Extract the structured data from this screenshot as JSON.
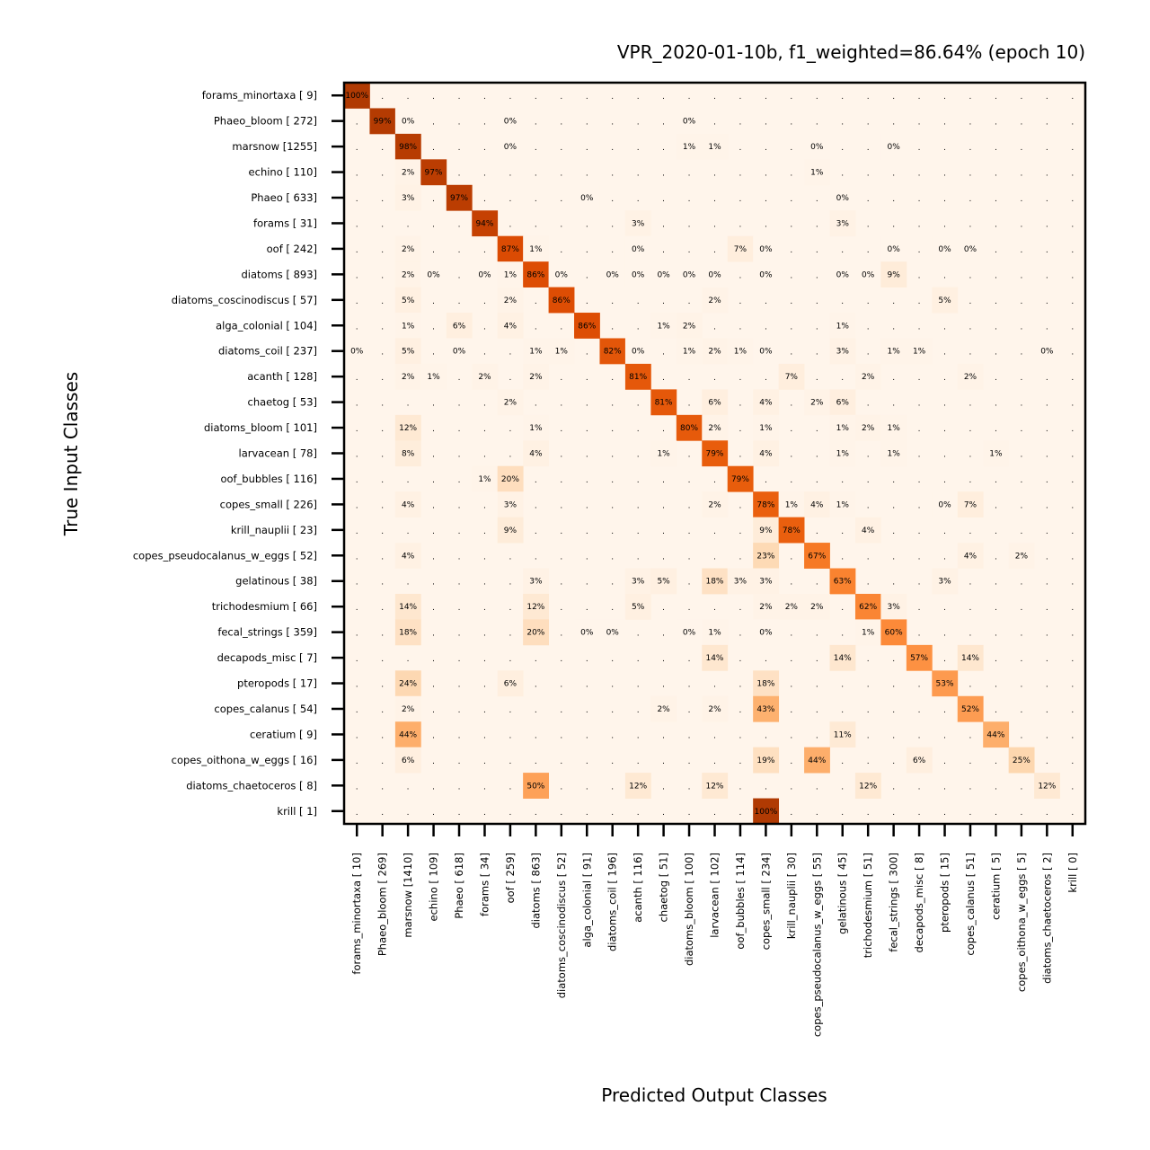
{
  "chart_data": {
    "type": "heatmap",
    "title": "VPR_2020-01-10b, f1_weighted=86.64% (epoch 10)",
    "xlabel": "Predicted Output Classes",
    "ylabel": "True Input Classes",
    "colormap": "Oranges",
    "value_range": [
      0,
      100
    ],
    "y_labels": [
      "forams_minortaxa [   9]",
      "Phaeo_bloom [ 272]",
      "marsnow [1255]",
      "echino [ 110]",
      "Phaeo [ 633]",
      "forams [  31]",
      "oof [ 242]",
      "diatoms [ 893]",
      "diatoms_coscinodiscus [  57]",
      "alga_colonial [ 104]",
      "diatoms_coil [ 237]",
      "acanth [ 128]",
      "chaetog [  53]",
      "diatoms_bloom [ 101]",
      "larvacean [  78]",
      "oof_bubbles [ 116]",
      "copes_small [ 226]",
      "krill_nauplii [  23]",
      "copes_pseudocalanus_w_eggs [  52]",
      "gelatinous [  38]",
      "trichodesmium [  66]",
      "fecal_strings [ 359]",
      "decapods_misc [   7]",
      "pteropods [  17]",
      "copes_calanus [  54]",
      "ceratium [   9]",
      "copes_oithona_w_eggs [  16]",
      "diatoms_chaetoceros [   8]",
      "krill [   1]"
    ],
    "x_labels": [
      "forams_minortaxa [  10]",
      "Phaeo_bloom [ 269]",
      "marsnow [1410]",
      "echino [ 109]",
      "Phaeo [ 618]",
      "forams [  34]",
      "oof [ 259]",
      "diatoms [ 863]",
      "diatoms_coscinodiscus [  52]",
      "alga_colonial [  91]",
      "diatoms_coil [ 196]",
      "acanth [ 116]",
      "chaetog [  51]",
      "diatoms_bloom [ 100]",
      "larvacean [ 102]",
      "oof_bubbles [ 114]",
      "copes_small [ 234]",
      "krill_nauplii [  30]",
      "copes_pseudocalanus_w_eggs [  55]",
      "gelatinous [  45]",
      "trichodesmium [  51]",
      "fecal_strings [ 300]",
      "decapods_misc [   8]",
      "pteropods [  15]",
      "copes_calanus [  51]",
      "ceratium [   5]",
      "copes_oithona_w_eggs [   5]",
      "diatoms_chaetoceros [   2]",
      "krill [   0]"
    ],
    "cells": [
      [
        0,
        0,
        "100%"
      ],
      [
        1,
        1,
        "99%"
      ],
      [
        1,
        2,
        "0%"
      ],
      [
        1,
        6,
        "0%"
      ],
      [
        1,
        13,
        "0%"
      ],
      [
        2,
        2,
        "98%"
      ],
      [
        2,
        6,
        "0%"
      ],
      [
        2,
        13,
        "1%"
      ],
      [
        2,
        14,
        "1%"
      ],
      [
        2,
        18,
        "0%"
      ],
      [
        2,
        21,
        "0%"
      ],
      [
        3,
        2,
        "2%"
      ],
      [
        3,
        3,
        "97%"
      ],
      [
        3,
        18,
        "1%"
      ],
      [
        4,
        2,
        "3%"
      ],
      [
        4,
        4,
        "97%"
      ],
      [
        4,
        9,
        "0%"
      ],
      [
        4,
        19,
        "0%"
      ],
      [
        5,
        5,
        "94%"
      ],
      [
        5,
        11,
        "3%"
      ],
      [
        5,
        19,
        "3%"
      ],
      [
        6,
        2,
        "2%"
      ],
      [
        6,
        6,
        "87%"
      ],
      [
        6,
        7,
        "1%"
      ],
      [
        6,
        11,
        "0%"
      ],
      [
        6,
        15,
        "7%"
      ],
      [
        6,
        16,
        "0%"
      ],
      [
        6,
        21,
        "0%"
      ],
      [
        6,
        23,
        "0%"
      ],
      [
        6,
        24,
        "0%"
      ],
      [
        7,
        2,
        "2%"
      ],
      [
        7,
        3,
        "0%"
      ],
      [
        7,
        5,
        "0%"
      ],
      [
        7,
        6,
        "1%"
      ],
      [
        7,
        7,
        "86%"
      ],
      [
        7,
        8,
        "0%"
      ],
      [
        7,
        10,
        "0%"
      ],
      [
        7,
        11,
        "0%"
      ],
      [
        7,
        12,
        "0%"
      ],
      [
        7,
        13,
        "0%"
      ],
      [
        7,
        14,
        "0%"
      ],
      [
        7,
        16,
        "0%"
      ],
      [
        7,
        19,
        "0%"
      ],
      [
        7,
        20,
        "0%"
      ],
      [
        7,
        21,
        "9%"
      ],
      [
        8,
        2,
        "5%"
      ],
      [
        8,
        6,
        "2%"
      ],
      [
        8,
        8,
        "86%"
      ],
      [
        8,
        14,
        "2%"
      ],
      [
        8,
        23,
        "5%"
      ],
      [
        9,
        2,
        "1%"
      ],
      [
        9,
        4,
        "6%"
      ],
      [
        9,
        6,
        "4%"
      ],
      [
        9,
        9,
        "86%"
      ],
      [
        9,
        12,
        "1%"
      ],
      [
        9,
        13,
        "2%"
      ],
      [
        9,
        19,
        "1%"
      ],
      [
        10,
        0,
        "0%"
      ],
      [
        10,
        2,
        "5%"
      ],
      [
        10,
        4,
        "0%"
      ],
      [
        10,
        7,
        "1%"
      ],
      [
        10,
        8,
        "1%"
      ],
      [
        10,
        10,
        "82%"
      ],
      [
        10,
        11,
        "0%"
      ],
      [
        10,
        13,
        "1%"
      ],
      [
        10,
        14,
        "2%"
      ],
      [
        10,
        15,
        "1%"
      ],
      [
        10,
        16,
        "0%"
      ],
      [
        10,
        19,
        "3%"
      ],
      [
        10,
        21,
        "1%"
      ],
      [
        10,
        22,
        "1%"
      ],
      [
        10,
        27,
        "0%"
      ],
      [
        11,
        2,
        "2%"
      ],
      [
        11,
        3,
        "1%"
      ],
      [
        11,
        5,
        "2%"
      ],
      [
        11,
        7,
        "2%"
      ],
      [
        11,
        11,
        "81%"
      ],
      [
        11,
        17,
        "7%"
      ],
      [
        11,
        20,
        "2%"
      ],
      [
        11,
        24,
        "2%"
      ],
      [
        12,
        6,
        "2%"
      ],
      [
        12,
        12,
        "81%"
      ],
      [
        12,
        14,
        "6%"
      ],
      [
        12,
        16,
        "4%"
      ],
      [
        12,
        18,
        "2%"
      ],
      [
        12,
        19,
        "6%"
      ],
      [
        13,
        2,
        "12%"
      ],
      [
        13,
        7,
        "1%"
      ],
      [
        13,
        13,
        "80%"
      ],
      [
        13,
        14,
        "2%"
      ],
      [
        13,
        16,
        "1%"
      ],
      [
        13,
        19,
        "1%"
      ],
      [
        13,
        20,
        "2%"
      ],
      [
        13,
        21,
        "1%"
      ],
      [
        14,
        2,
        "8%"
      ],
      [
        14,
        7,
        "4%"
      ],
      [
        14,
        12,
        "1%"
      ],
      [
        14,
        14,
        "79%"
      ],
      [
        14,
        16,
        "4%"
      ],
      [
        14,
        19,
        "1%"
      ],
      [
        14,
        21,
        "1%"
      ],
      [
        14,
        25,
        "1%"
      ],
      [
        15,
        5,
        "1%"
      ],
      [
        15,
        6,
        "20%"
      ],
      [
        15,
        15,
        "79%"
      ],
      [
        16,
        2,
        "4%"
      ],
      [
        16,
        6,
        "3%"
      ],
      [
        16,
        14,
        "2%"
      ],
      [
        16,
        16,
        "78%"
      ],
      [
        16,
        17,
        "1%"
      ],
      [
        16,
        18,
        "4%"
      ],
      [
        16,
        19,
        "1%"
      ],
      [
        16,
        23,
        "0%"
      ],
      [
        16,
        24,
        "7%"
      ],
      [
        17,
        6,
        "9%"
      ],
      [
        17,
        16,
        "9%"
      ],
      [
        17,
        17,
        "78%"
      ],
      [
        17,
        20,
        "4%"
      ],
      [
        18,
        2,
        "4%"
      ],
      [
        18,
        16,
        "23%"
      ],
      [
        18,
        18,
        "67%"
      ],
      [
        18,
        24,
        "4%"
      ],
      [
        18,
        26,
        "2%"
      ],
      [
        19,
        7,
        "3%"
      ],
      [
        19,
        11,
        "3%"
      ],
      [
        19,
        12,
        "5%"
      ],
      [
        19,
        14,
        "18%"
      ],
      [
        19,
        15,
        "3%"
      ],
      [
        19,
        16,
        "3%"
      ],
      [
        19,
        19,
        "63%"
      ],
      [
        19,
        23,
        "3%"
      ],
      [
        20,
        2,
        "14%"
      ],
      [
        20,
        7,
        "12%"
      ],
      [
        20,
        11,
        "5%"
      ],
      [
        20,
        16,
        "2%"
      ],
      [
        20,
        17,
        "2%"
      ],
      [
        20,
        18,
        "2%"
      ],
      [
        20,
        20,
        "62%"
      ],
      [
        20,
        21,
        "3%"
      ],
      [
        21,
        2,
        "18%"
      ],
      [
        21,
        7,
        "20%"
      ],
      [
        21,
        9,
        "0%"
      ],
      [
        21,
        10,
        "0%"
      ],
      [
        21,
        13,
        "0%"
      ],
      [
        21,
        14,
        "1%"
      ],
      [
        21,
        16,
        "0%"
      ],
      [
        21,
        20,
        "1%"
      ],
      [
        21,
        21,
        "60%"
      ],
      [
        22,
        14,
        "14%"
      ],
      [
        22,
        19,
        "14%"
      ],
      [
        22,
        22,
        "57%"
      ],
      [
        22,
        24,
        "14%"
      ],
      [
        23,
        2,
        "24%"
      ],
      [
        23,
        6,
        "6%"
      ],
      [
        23,
        16,
        "18%"
      ],
      [
        23,
        23,
        "53%"
      ],
      [
        24,
        2,
        "2%"
      ],
      [
        24,
        12,
        "2%"
      ],
      [
        24,
        14,
        "2%"
      ],
      [
        24,
        16,
        "43%"
      ],
      [
        24,
        24,
        "52%"
      ],
      [
        25,
        2,
        "44%"
      ],
      [
        25,
        19,
        "11%"
      ],
      [
        25,
        25,
        "44%"
      ],
      [
        26,
        2,
        "6%"
      ],
      [
        26,
        16,
        "19%"
      ],
      [
        26,
        18,
        "44%"
      ],
      [
        26,
        22,
        "6%"
      ],
      [
        26,
        26,
        "25%"
      ],
      [
        27,
        7,
        "50%"
      ],
      [
        27,
        11,
        "12%"
      ],
      [
        27,
        14,
        "12%"
      ],
      [
        27,
        20,
        "12%"
      ],
      [
        27,
        27,
        "12%"
      ],
      [
        28,
        16,
        "100%"
      ]
    ],
    "empty_cell_marker": ".",
    "legend": "none",
    "grid": false
  }
}
